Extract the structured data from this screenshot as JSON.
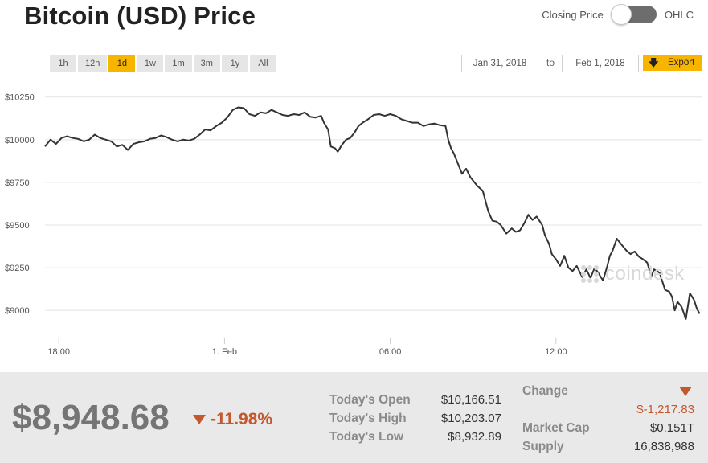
{
  "page": {
    "title": "Bitcoin (USD) Price"
  },
  "toggle": {
    "left_label": "Closing Price",
    "right_label": "OHLC",
    "state": "off"
  },
  "ranges": [
    "1h",
    "12h",
    "1d",
    "1w",
    "1m",
    "3m",
    "1y",
    "All"
  ],
  "active_range": "1d",
  "date_range": {
    "from": "Jan 31, 2018",
    "separator": "to",
    "to": "Feb 1, 2018"
  },
  "export": {
    "label": "Export",
    "icon": "download-arrow-icon"
  },
  "watermark": {
    "text": "coindesk",
    "icon": "coindesk-logo-icon"
  },
  "colors": {
    "accent": "#f7b500",
    "line": "#333333",
    "negative": "#c5572d",
    "footer_bg": "#e9e9e9"
  },
  "chart_data": {
    "type": "line",
    "title": "",
    "xlabel": "",
    "ylabel": "",
    "x_range": [
      -6.5,
      17.3
    ],
    "x_tick_values": [
      -6,
      0,
      6,
      12
    ],
    "x_tick_labels": [
      "18:00",
      "1. Feb",
      "06:00",
      "12:00"
    ],
    "ylim": [
      8850,
      10310
    ],
    "y_tick_values": [
      9000,
      9250,
      9500,
      9750,
      10000,
      10250
    ],
    "y_tick_labels": [
      "$9000",
      "$9250",
      "$9500",
      "$9750",
      "$10000",
      "$10250"
    ],
    "grid": true,
    "legend": "none",
    "series": [
      {
        "values": [
          [
            -6.5,
            9960
          ],
          [
            -6.3,
            10000
          ],
          [
            -6.1,
            9975
          ],
          [
            -5.9,
            10010
          ],
          [
            -5.7,
            10020
          ],
          [
            -5.5,
            10010
          ],
          [
            -5.3,
            10005
          ],
          [
            -5.1,
            9990
          ],
          [
            -4.9,
            10000
          ],
          [
            -4.7,
            10030
          ],
          [
            -4.5,
            10010
          ],
          [
            -4.3,
            10000
          ],
          [
            -4.1,
            9990
          ],
          [
            -3.9,
            9960
          ],
          [
            -3.7,
            9970
          ],
          [
            -3.5,
            9940
          ],
          [
            -3.3,
            9975
          ],
          [
            -3.1,
            9985
          ],
          [
            -2.9,
            9990
          ],
          [
            -2.7,
            10005
          ],
          [
            -2.5,
            10010
          ],
          [
            -2.3,
            10025
          ],
          [
            -2.1,
            10015
          ],
          [
            -1.9,
            10000
          ],
          [
            -1.7,
            9990
          ],
          [
            -1.5,
            10000
          ],
          [
            -1.3,
            9995
          ],
          [
            -1.1,
            10005
          ],
          [
            -0.9,
            10030
          ],
          [
            -0.7,
            10060
          ],
          [
            -0.5,
            10055
          ],
          [
            -0.3,
            10080
          ],
          [
            -0.1,
            10100
          ],
          [
            0.1,
            10130
          ],
          [
            0.3,
            10175
          ],
          [
            0.5,
            10190
          ],
          [
            0.7,
            10185
          ],
          [
            0.9,
            10150
          ],
          [
            1.1,
            10140
          ],
          [
            1.3,
            10160
          ],
          [
            1.5,
            10155
          ],
          [
            1.7,
            10175
          ],
          [
            1.9,
            10160
          ],
          [
            2.1,
            10145
          ],
          [
            2.3,
            10140
          ],
          [
            2.5,
            10150
          ],
          [
            2.7,
            10145
          ],
          [
            2.9,
            10160
          ],
          [
            3.1,
            10135
          ],
          [
            3.3,
            10130
          ],
          [
            3.5,
            10140
          ],
          [
            3.6,
            10100
          ],
          [
            3.75,
            10060
          ],
          [
            3.85,
            9960
          ],
          [
            4.0,
            9950
          ],
          [
            4.1,
            9930
          ],
          [
            4.25,
            9970
          ],
          [
            4.4,
            10000
          ],
          [
            4.55,
            10010
          ],
          [
            4.7,
            10040
          ],
          [
            4.85,
            10080
          ],
          [
            5.0,
            10100
          ],
          [
            5.2,
            10120
          ],
          [
            5.4,
            10145
          ],
          [
            5.6,
            10150
          ],
          [
            5.8,
            10140
          ],
          [
            6.0,
            10150
          ],
          [
            6.2,
            10140
          ],
          [
            6.4,
            10120
          ],
          [
            6.6,
            10110
          ],
          [
            6.8,
            10100
          ],
          [
            7.0,
            10100
          ],
          [
            7.2,
            10080
          ],
          [
            7.4,
            10090
          ],
          [
            7.6,
            10095
          ],
          [
            7.8,
            10085
          ],
          [
            8.0,
            10080
          ],
          [
            8.1,
            10000
          ],
          [
            8.2,
            9950
          ],
          [
            8.3,
            9920
          ],
          [
            8.45,
            9860
          ],
          [
            8.6,
            9800
          ],
          [
            8.75,
            9830
          ],
          [
            8.9,
            9780
          ],
          [
            9.0,
            9760
          ],
          [
            9.15,
            9730
          ],
          [
            9.35,
            9700
          ],
          [
            9.45,
            9640
          ],
          [
            9.55,
            9580
          ],
          [
            9.7,
            9525
          ],
          [
            9.85,
            9520
          ],
          [
            10.0,
            9500
          ],
          [
            10.2,
            9450
          ],
          [
            10.4,
            9480
          ],
          [
            10.55,
            9460
          ],
          [
            10.7,
            9470
          ],
          [
            10.85,
            9510
          ],
          [
            11.0,
            9560
          ],
          [
            11.15,
            9530
          ],
          [
            11.3,
            9550
          ],
          [
            11.5,
            9500
          ],
          [
            11.6,
            9440
          ],
          [
            11.75,
            9390
          ],
          [
            11.85,
            9330
          ],
          [
            12.0,
            9300
          ],
          [
            12.15,
            9260
          ],
          [
            12.3,
            9320
          ],
          [
            12.45,
            9250
          ],
          [
            12.6,
            9230
          ],
          [
            12.75,
            9260
          ],
          [
            12.95,
            9195
          ],
          [
            13.1,
            9240
          ],
          [
            13.25,
            9190
          ],
          [
            13.4,
            9250
          ],
          [
            13.55,
            9215
          ],
          [
            13.7,
            9175
          ],
          [
            13.85,
            9255
          ],
          [
            13.95,
            9320
          ],
          [
            14.05,
            9350
          ],
          [
            14.2,
            9420
          ],
          [
            14.4,
            9380
          ],
          [
            14.55,
            9350
          ],
          [
            14.7,
            9330
          ],
          [
            14.85,
            9345
          ],
          [
            15.0,
            9315
          ],
          [
            15.15,
            9300
          ],
          [
            15.3,
            9280
          ],
          [
            15.45,
            9200
          ],
          [
            15.55,
            9240
          ],
          [
            15.75,
            9220
          ],
          [
            15.95,
            9120
          ],
          [
            16.1,
            9110
          ],
          [
            16.2,
            9080
          ],
          [
            16.3,
            9000
          ],
          [
            16.4,
            9050
          ],
          [
            16.55,
            9020
          ],
          [
            16.7,
            8950
          ],
          [
            16.85,
            9100
          ],
          [
            17.0,
            9060
          ],
          [
            17.1,
            9010
          ],
          [
            17.2,
            8980
          ]
        ]
      }
    ]
  },
  "stats": {
    "price": "$8,948.68",
    "change_pct": "-11.98%",
    "open_label": "Today's Open",
    "open_value": "$10,166.51",
    "high_label": "Today's High",
    "high_value": "$10,203.07",
    "low_label": "Today's Low",
    "low_value": "$8,932.89",
    "change_label": "Change",
    "change_value": "$-1,217.83",
    "cap_label": "Market Cap",
    "cap_value": "$0.151T",
    "supply_label": "Supply",
    "supply_value": "16,838,988"
  }
}
